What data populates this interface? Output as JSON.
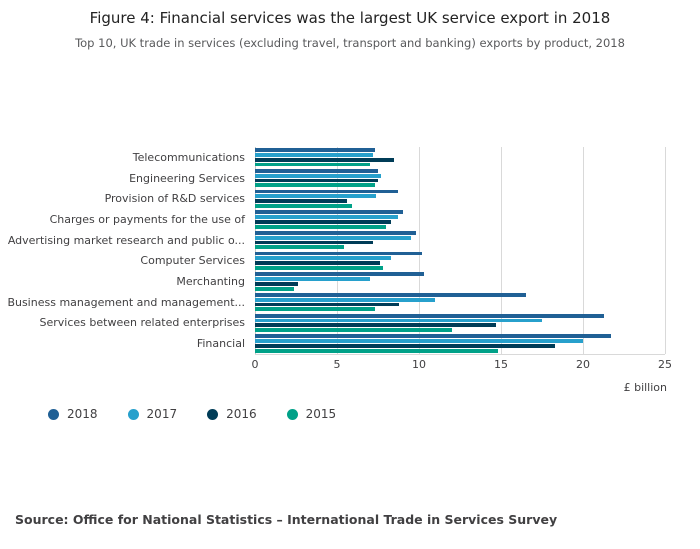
{
  "header": {
    "title": "Figure 4: Financial services was the largest UK service export in 2018",
    "subtitle": "Top 10, UK trade in services (excluding travel, transport and banking) exports by product, 2018"
  },
  "chart_data": {
    "type": "bar",
    "orientation": "horizontal",
    "title": "Figure 4: Financial services was the largest UK service export in 2018",
    "subtitle": "Top 10, UK trade in services (excluding travel, transport and banking) exports by product, 2018",
    "categories": [
      "Telecommunications",
      "Engineering Services",
      "Provision of R&D services",
      "Charges or payments for the use of",
      "Advertising market research and public o...",
      "Computer Services",
      "Merchanting",
      "Business management and management...",
      "Services between related enterprises",
      "Financial"
    ],
    "series": [
      {
        "name": "2018",
        "color": "#206095",
        "values": [
          7.3,
          7.5,
          8.7,
          9.0,
          9.8,
          10.2,
          10.3,
          16.5,
          21.3,
          21.7
        ]
      },
      {
        "name": "2017",
        "color": "#27a0cc",
        "values": [
          7.2,
          7.7,
          7.4,
          8.7,
          9.5,
          8.3,
          7.0,
          11.0,
          17.5,
          20.0
        ]
      },
      {
        "name": "2016",
        "color": "#003c57",
        "values": [
          8.5,
          7.5,
          5.6,
          8.3,
          7.2,
          7.6,
          2.6,
          8.8,
          14.7,
          18.3
        ]
      },
      {
        "name": "2015",
        "color": "#00a188",
        "values": [
          7.0,
          7.3,
          5.9,
          8.0,
          5.4,
          7.8,
          2.4,
          7.3,
          12.0,
          14.8
        ]
      }
    ],
    "xlabel": "£ billion",
    "ylabel": "",
    "x_ticks": [
      0,
      5,
      10,
      15,
      20,
      25
    ],
    "xlim": [
      0,
      25
    ],
    "grid": "vertical",
    "legend_position": "bottom-left"
  },
  "footer": {
    "source": "Source: Office for National Statistics – International Trade in Services Survey"
  }
}
